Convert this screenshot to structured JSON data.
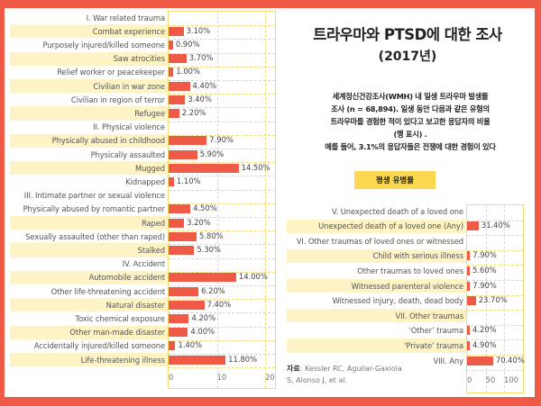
{
  "header": {
    "title_main_ko": "트라우마와 PTSD에 대한 조사",
    "title_year": "(2017년)",
    "description_lines": [
      "세계정신건강조사(WMH) 내 일생 트라우마 발생률",
      "조사 (n = 68,894). 일생 동안 다음과 같은 유형의",
      "트라우마를 경험한 적이 있다고 보고한 응답자의 비율",
      "(행 표시) .",
      "예를 들어, 3.1%의 응답자들은 전쟁에 대한 경험이 있다"
    ],
    "button_label": "평생 유병률",
    "source_label": "자료",
    "source_text_1": ": Kessler RC, Aguilar-Gaxiola",
    "source_text_2": "S, Alonso J, et al."
  },
  "colors": {
    "frame": "#ee5a45",
    "bar": "#ee5a45",
    "row_highlight": "#fdf3c4",
    "grid": "#f6dc70",
    "button": "#fcd851"
  },
  "chart_data": [
    {
      "type": "bar",
      "orientation": "horizontal",
      "title": "",
      "xlabel": "",
      "ylabel": "",
      "xlim": [
        0,
        22
      ],
      "x_ticks": [
        "0",
        "10",
        "20"
      ],
      "grid": true,
      "unit": "%",
      "categories": [
        "I. War related trauma",
        "Combat experience",
        "Purposely injured/killed someone",
        "Saw atrocities",
        "Relief worker or peacekeeper",
        "Civilian in war zone",
        "Civilian in region of terror",
        "Refugee",
        "II. Physical violence",
        "Physically abused in childhood",
        "Physically assaulted",
        "Mugged",
        "Kidnapped",
        "III. Intimate partner or sexual violence",
        "Physically abused by romantic partner",
        "Raped",
        "Sexually assaulted (other than raped)",
        "Stalked",
        "IV. Accident",
        "Automobile accident",
        "Other life-threatening accident",
        "Natural disaster",
        "Toxic chemical exposure",
        "Other man-made disaster",
        "Accidentally injured/killed someone",
        "Life-threatening illness"
      ],
      "values": [
        null,
        3.1,
        0.9,
        3.7,
        1.0,
        4.4,
        3.4,
        2.2,
        null,
        7.9,
        5.9,
        14.5,
        1.1,
        null,
        4.5,
        3.2,
        5.8,
        5.3,
        null,
        14.0,
        6.2,
        7.4,
        4.2,
        4.0,
        1.4,
        11.8
      ],
      "labels": [
        "",
        "3.10%",
        "0.90%",
        "3.70%",
        "1.00%",
        "4.40%",
        "3.40%",
        "2.20%",
        "",
        "7.90%",
        "5.90%",
        "14.50%",
        "1.10%",
        "",
        "4.50%",
        "3.20%",
        "5.80%",
        "5.30%",
        "",
        "14.00%",
        "6.20%",
        "7.40%",
        "4.20%",
        "4.00%",
        "1.40%",
        "11.80%"
      ],
      "highlight": [
        false,
        true,
        false,
        true,
        false,
        true,
        false,
        true,
        false,
        true,
        false,
        true,
        false,
        false,
        false,
        true,
        false,
        true,
        false,
        true,
        false,
        true,
        false,
        true,
        false,
        true
      ]
    },
    {
      "type": "bar",
      "orientation": "horizontal",
      "title": "",
      "xlabel": "",
      "ylabel": "",
      "xlim": [
        0,
        150
      ],
      "x_ticks": [
        "0",
        "50",
        "100"
      ],
      "grid": true,
      "unit": "%",
      "categories": [
        "V. Unexpected death of a loved one",
        "Unexpected death of a loved one (Any)",
        "VI. Other traumas of loved ones or witnessed",
        "Child with serious illness",
        "Other traumas to loved ones",
        "Witnessed parenteral violence",
        "Witnessed injury, death, dead body",
        "VII. Other traumas",
        "‘Other’ trauma",
        "‘Private’ trauma",
        "VIII. Any"
      ],
      "values": [
        null,
        31.4,
        null,
        7.9,
        5.6,
        7.9,
        23.7,
        null,
        4.2,
        4.9,
        70.4
      ],
      "labels": [
        "",
        "31.40%",
        "",
        "7.90%",
        "5.60%",
        "7.90%",
        "23.70%",
        "",
        "4.20%",
        "4.90%",
        "70.40%"
      ],
      "highlight": [
        false,
        true,
        false,
        true,
        false,
        true,
        false,
        true,
        false,
        true,
        false
      ]
    }
  ]
}
